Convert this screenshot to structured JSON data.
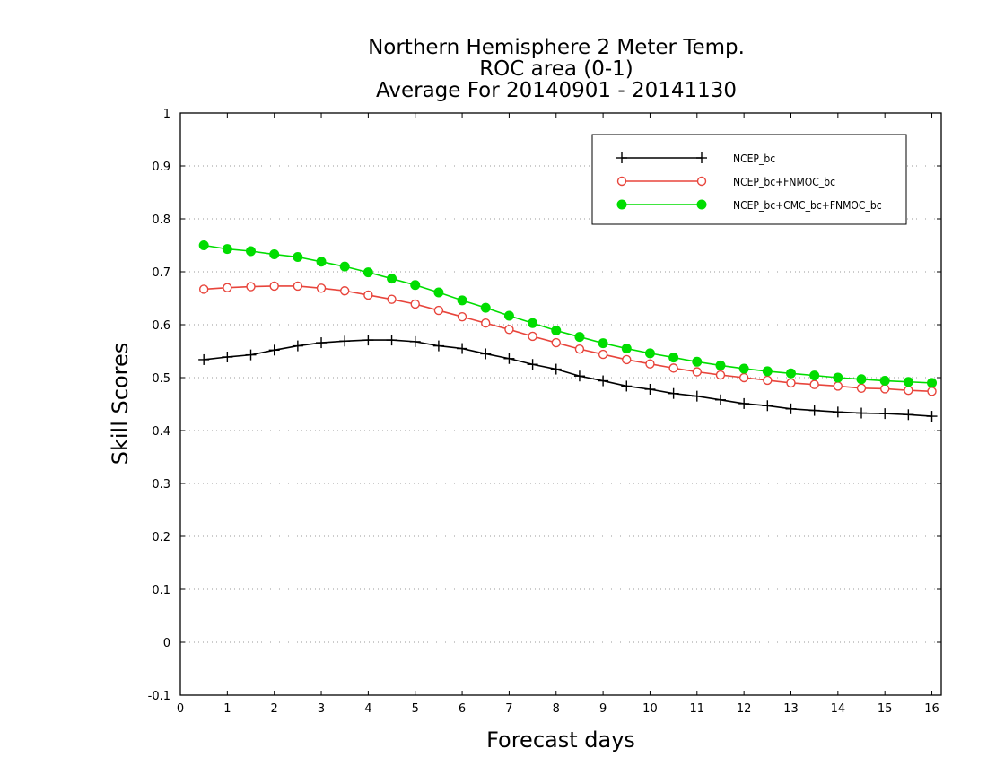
{
  "chart_data": {
    "type": "line",
    "title": [
      "Northern Hemisphere 2 Meter Temp.",
      "ROC area (0-1)",
      "Average For 20140901 - 20141130"
    ],
    "xlabel": "Forecast days",
    "ylabel": "Skill Scores",
    "xlim": [
      0,
      16.2
    ],
    "ylim": [
      -0.1,
      1
    ],
    "xticks": [
      "0",
      "1",
      "2",
      "3",
      "4",
      "5",
      "6",
      "7",
      "8",
      "9",
      "10",
      "11",
      "12",
      "13",
      "14",
      "15",
      "16"
    ],
    "yticks": [
      "-0.1",
      "0",
      "0.1",
      "0.2",
      "0.3",
      "0.4",
      "0.5",
      "0.6",
      "0.7",
      "0.8",
      "0.9",
      "1"
    ],
    "grid": "horizontal dotted",
    "legend_position": "top-right",
    "x": [
      0.5,
      1,
      1.5,
      2,
      2.5,
      3,
      3.5,
      4,
      4.5,
      5,
      5.5,
      6,
      6.5,
      7,
      7.5,
      8,
      8.5,
      9,
      9.5,
      10,
      10.5,
      11,
      11.5,
      12,
      12.5,
      13,
      13.5,
      14,
      14.5,
      15,
      15.5,
      16
    ],
    "series": [
      {
        "name": "NCEP_bc",
        "color": "#000000",
        "marker": "plus",
        "values": [
          0.534,
          0.539,
          0.543,
          0.552,
          0.56,
          0.566,
          0.569,
          0.571,
          0.571,
          0.568,
          0.56,
          0.555,
          0.545,
          0.536,
          0.525,
          0.516,
          0.503,
          0.494,
          0.484,
          0.478,
          0.47,
          0.465,
          0.458,
          0.451,
          0.447,
          0.441,
          0.438,
          0.435,
          0.433,
          0.432,
          0.43,
          0.427
        ]
      },
      {
        "name": "NCEP_bc+FNMOC_bc",
        "color": "#e8453c",
        "marker": "open-circle",
        "values": [
          0.667,
          0.67,
          0.672,
          0.673,
          0.673,
          0.669,
          0.664,
          0.656,
          0.648,
          0.639,
          0.627,
          0.615,
          0.603,
          0.591,
          0.578,
          0.566,
          0.554,
          0.544,
          0.534,
          0.526,
          0.518,
          0.511,
          0.505,
          0.5,
          0.495,
          0.49,
          0.487,
          0.484,
          0.48,
          0.479,
          0.476,
          0.474
        ]
      },
      {
        "name": "NCEP_bc+CMC_bc+FNMOC_bc",
        "color": "#00dd00",
        "marker": "filled-circle",
        "values": [
          0.75,
          0.743,
          0.739,
          0.733,
          0.728,
          0.719,
          0.71,
          0.699,
          0.687,
          0.675,
          0.661,
          0.646,
          0.632,
          0.617,
          0.603,
          0.589,
          0.577,
          0.565,
          0.555,
          0.546,
          0.538,
          0.53,
          0.523,
          0.517,
          0.512,
          0.508,
          0.504,
          0.5,
          0.497,
          0.494,
          0.492,
          0.49
        ]
      }
    ]
  }
}
